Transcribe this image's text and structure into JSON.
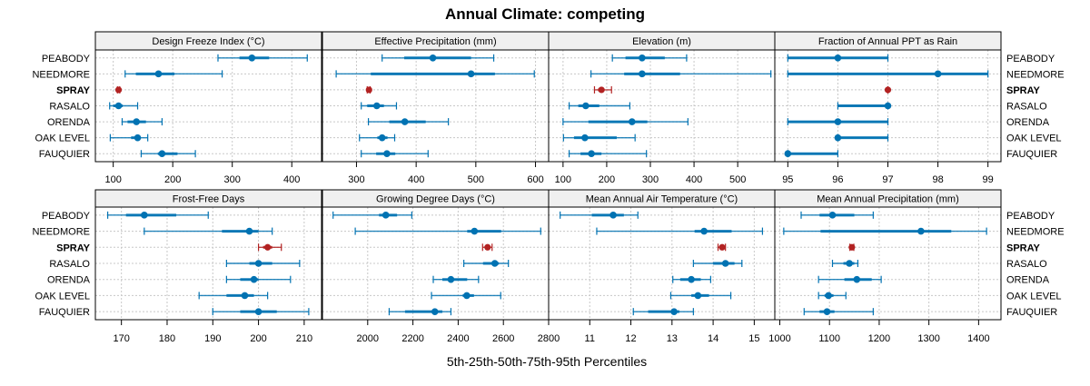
{
  "chart_data": {
    "type": "dotplot-interval",
    "title": "Annual Climate: competing",
    "xlabel": "5th-25th-50th-75th-95th Percentiles",
    "sites": [
      "PEABODY",
      "NEEDMORE",
      "SPRAY",
      "RASALO",
      "ORENDA",
      "OAK LEVEL",
      "FAUQUIER"
    ],
    "highlight_site": "SPRAY",
    "colors": {
      "competing": "#0072B2",
      "highlight": "#B22222",
      "strip_bg": "#F0F0F0",
      "grid": "#C8C8C8"
    },
    "grid": true,
    "layout": {
      "rows": 2,
      "cols": 4
    },
    "panels": [
      {
        "name": "Design Freeze Index (°C)",
        "xlim": [
          70,
          450
        ],
        "ticks": [
          100,
          200,
          300,
          400
        ],
        "values": {
          "PEABODY": [
            276,
            312,
            333,
            362,
            426
          ],
          "NEEDMORE": [
            120,
            138,
            176,
            203,
            283
          ],
          "SPRAY": [
            107,
            108,
            109,
            110,
            111
          ],
          "RASALO": [
            94,
            100,
            109,
            116,
            141
          ],
          "ORENDA": [
            115,
            124,
            139,
            155,
            182
          ],
          "OAK LEVEL": [
            95,
            130,
            141,
            146,
            158
          ],
          "FAUQUIER": [
            147,
            175,
            182,
            208,
            238
          ]
        }
      },
      {
        "name": "Effective Precipitation (mm)",
        "xlim": [
          243,
          622
        ],
        "ticks": [
          300,
          400,
          500,
          600
        ],
        "values": {
          "PEABODY": [
            343,
            380,
            428,
            492,
            530
          ],
          "NEEDMORE": [
            266,
            324,
            492,
            532,
            598
          ],
          "SPRAY": [
            318,
            319,
            321,
            322,
            323
          ],
          "RASALO": [
            308,
            318,
            334,
            346,
            367
          ],
          "ORENDA": [
            320,
            355,
            381,
            416,
            454
          ],
          "OAK LEVEL": [
            305,
            335,
            343,
            352,
            364
          ],
          "FAUQUIER": [
            308,
            333,
            351,
            365,
            420
          ]
        }
      },
      {
        "name": "Elevation (m)",
        "xlim": [
          67,
          585
        ],
        "ticks": [
          100,
          200,
          300,
          400,
          500
        ],
        "values": {
          "PEABODY": [
            213,
            243,
            281,
            333,
            383
          ],
          "NEEDMORE": [
            164,
            240,
            281,
            368,
            576
          ],
          "SPRAY": [
            172,
            180,
            188,
            195,
            211
          ],
          "RASALO": [
            114,
            135,
            152,
            183,
            253
          ],
          "ORENDA": [
            100,
            158,
            258,
            293,
            386
          ],
          "OAK LEVEL": [
            101,
            125,
            150,
            223,
            265
          ],
          "FAUQUIER": [
            114,
            140,
            165,
            188,
            291
          ]
        }
      },
      {
        "name": "Fraction of Annual PPT as Rain",
        "xlim": [
          94.74,
          99.26
        ],
        "ticks": [
          95,
          96,
          97,
          98,
          99
        ],
        "values": {
          "PEABODY": [
            95,
            95,
            96,
            97,
            97
          ],
          "NEEDMORE": [
            95,
            95,
            98,
            99,
            99
          ],
          "SPRAY": [
            97,
            97,
            97,
            97,
            97
          ],
          "RASALO": [
            96,
            96,
            97,
            97,
            97
          ],
          "ORENDA": [
            95,
            95,
            96,
            97,
            97
          ],
          "OAK LEVEL": [
            96,
            96,
            96,
            97,
            97
          ],
          "FAUQUIER": [
            95,
            95,
            95,
            96,
            96
          ]
        }
      },
      {
        "name": "Frost-Free Days",
        "xlim": [
          164.3,
          213.8
        ],
        "ticks": [
          170,
          180,
          190,
          200,
          210
        ],
        "values": {
          "PEABODY": [
            167,
            171,
            175,
            182,
            189
          ],
          "NEEDMORE": [
            175,
            192,
            198,
            200,
            203
          ],
          "SPRAY": [
            200,
            201,
            202,
            203,
            205
          ],
          "RASALO": [
            193,
            198,
            200,
            203,
            209
          ],
          "ORENDA": [
            193,
            196,
            199,
            200,
            207
          ],
          "OAK LEVEL": [
            187,
            193,
            197,
            199,
            202
          ],
          "FAUQUIER": [
            190,
            196,
            200,
            204,
            211
          ]
        }
      },
      {
        "name": "Growing Degree Days (°C)",
        "xlim": [
          1800,
          2800
        ],
        "ticks": [
          2000,
          2200,
          2400,
          2600,
          2800
        ],
        "values": {
          "PEABODY": [
            1847,
            2050,
            2080,
            2130,
            2195
          ],
          "NEEDMORE": [
            1945,
            2440,
            2472,
            2590,
            2765
          ],
          "SPRAY": [
            2508,
            2520,
            2530,
            2540,
            2550
          ],
          "RASALO": [
            2425,
            2510,
            2562,
            2580,
            2622
          ],
          "ORENDA": [
            2290,
            2330,
            2368,
            2440,
            2490
          ],
          "OAK LEVEL": [
            2282,
            2420,
            2438,
            2470,
            2588
          ],
          "FAUQUIER": [
            2095,
            2165,
            2297,
            2330,
            2368
          ]
        }
      },
      {
        "name": "Mean Annual Air Temperature (°C)",
        "xlim": [
          10.0,
          15.5
        ],
        "ticks": [
          11,
          12,
          13,
          14,
          15
        ],
        "values": {
          "PEABODY": [
            10.28,
            11.05,
            11.57,
            11.83,
            12.17
          ],
          "NEEDMORE": [
            11.17,
            13.55,
            13.78,
            14.45,
            15.2
          ],
          "SPRAY": [
            14.12,
            14.17,
            14.22,
            14.26,
            14.3
          ],
          "RASALO": [
            13.52,
            14.0,
            14.3,
            14.52,
            14.7
          ],
          "ORENDA": [
            13.02,
            13.2,
            13.47,
            13.7,
            13.94
          ],
          "OAK LEVEL": [
            12.97,
            13.47,
            13.63,
            13.9,
            14.43
          ],
          "FAUQUIER": [
            12.06,
            12.42,
            13.05,
            13.18,
            13.52
          ]
        }
      },
      {
        "name": "Mean Annual Precipitation (mm)",
        "xlim": [
          990,
          1445
        ],
        "ticks": [
          1000,
          1100,
          1200,
          1300,
          1400
        ],
        "values": {
          "PEABODY": [
            1043,
            1080,
            1106,
            1150,
            1188
          ],
          "NEEDMORE": [
            1008,
            1082,
            1284,
            1345,
            1416
          ],
          "SPRAY": [
            1141,
            1143,
            1145,
            1147,
            1149
          ],
          "RASALO": [
            1106,
            1128,
            1140,
            1150,
            1157
          ],
          "ORENDA": [
            1078,
            1130,
            1155,
            1185,
            1204
          ],
          "OAK LEVEL": [
            1078,
            1090,
            1098,
            1108,
            1133
          ],
          "FAUQUIER": [
            1049,
            1080,
            1095,
            1110,
            1188
          ]
        }
      }
    ]
  }
}
